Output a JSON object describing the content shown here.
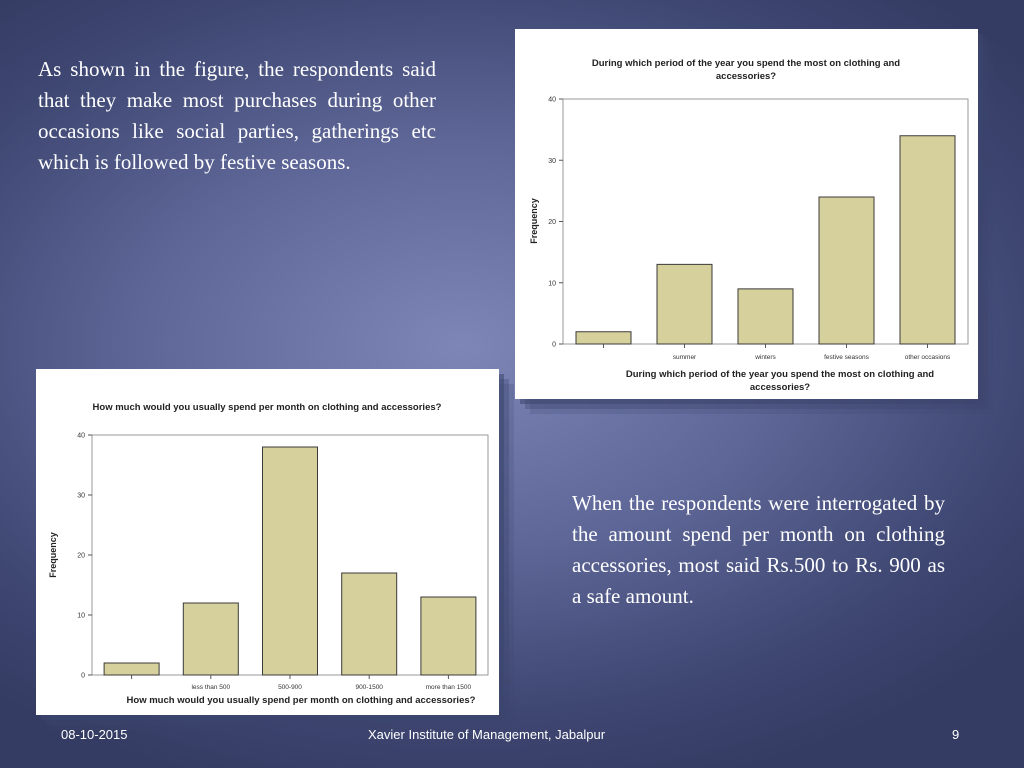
{
  "slide": {
    "paragraph_top": "As shown in the figure, the respondents said that they make most purchases during other occasions like social parties, gatherings etc which is followed by festive seasons.",
    "paragraph_bottom": "When the respondents were interrogated by the amount spend per month on clothing accessories, most said Rs.500 to Rs. 900 as a safe amount.",
    "footer_date": "08-10-2015",
    "footer_institute": "Xavier Institute of Management, Jabalpur",
    "footer_page": "9"
  },
  "colors": {
    "bar_fill": "#d6d09c",
    "bar_stroke": "#3a3a3a"
  },
  "chart_data": [
    {
      "type": "bar",
      "title_line1": "During which   period of the year you spend the most on clothing and",
      "title_line2": "accessories?",
      "xlabel_line1": "During which   period of the year you spend the most on clothing and",
      "xlabel_line2": "accessories?",
      "ylabel": "Frequency",
      "categories": [
        "",
        "summer",
        "winters",
        "festive seasons",
        "other occasions"
      ],
      "values": [
        2,
        13,
        9,
        24,
        34
      ],
      "ylim": [
        0,
        40
      ],
      "yticks": [
        "0",
        "10",
        "20",
        "30",
        "40"
      ],
      "grid": false
    },
    {
      "type": "bar",
      "title_line1": "How much would you usually spend per month on clothing and accessories?",
      "xlabel_line1": "How much would you usually spend per month on clothing and accessories?",
      "ylabel": "Frequency",
      "categories": [
        "",
        "less than 500",
        "500-900",
        "900-1500",
        "more than 1500"
      ],
      "values": [
        2,
        12,
        38,
        17,
        13
      ],
      "ylim": [
        0,
        40
      ],
      "yticks": [
        "0",
        "10",
        "20",
        "30",
        "40"
      ],
      "grid": false
    }
  ]
}
